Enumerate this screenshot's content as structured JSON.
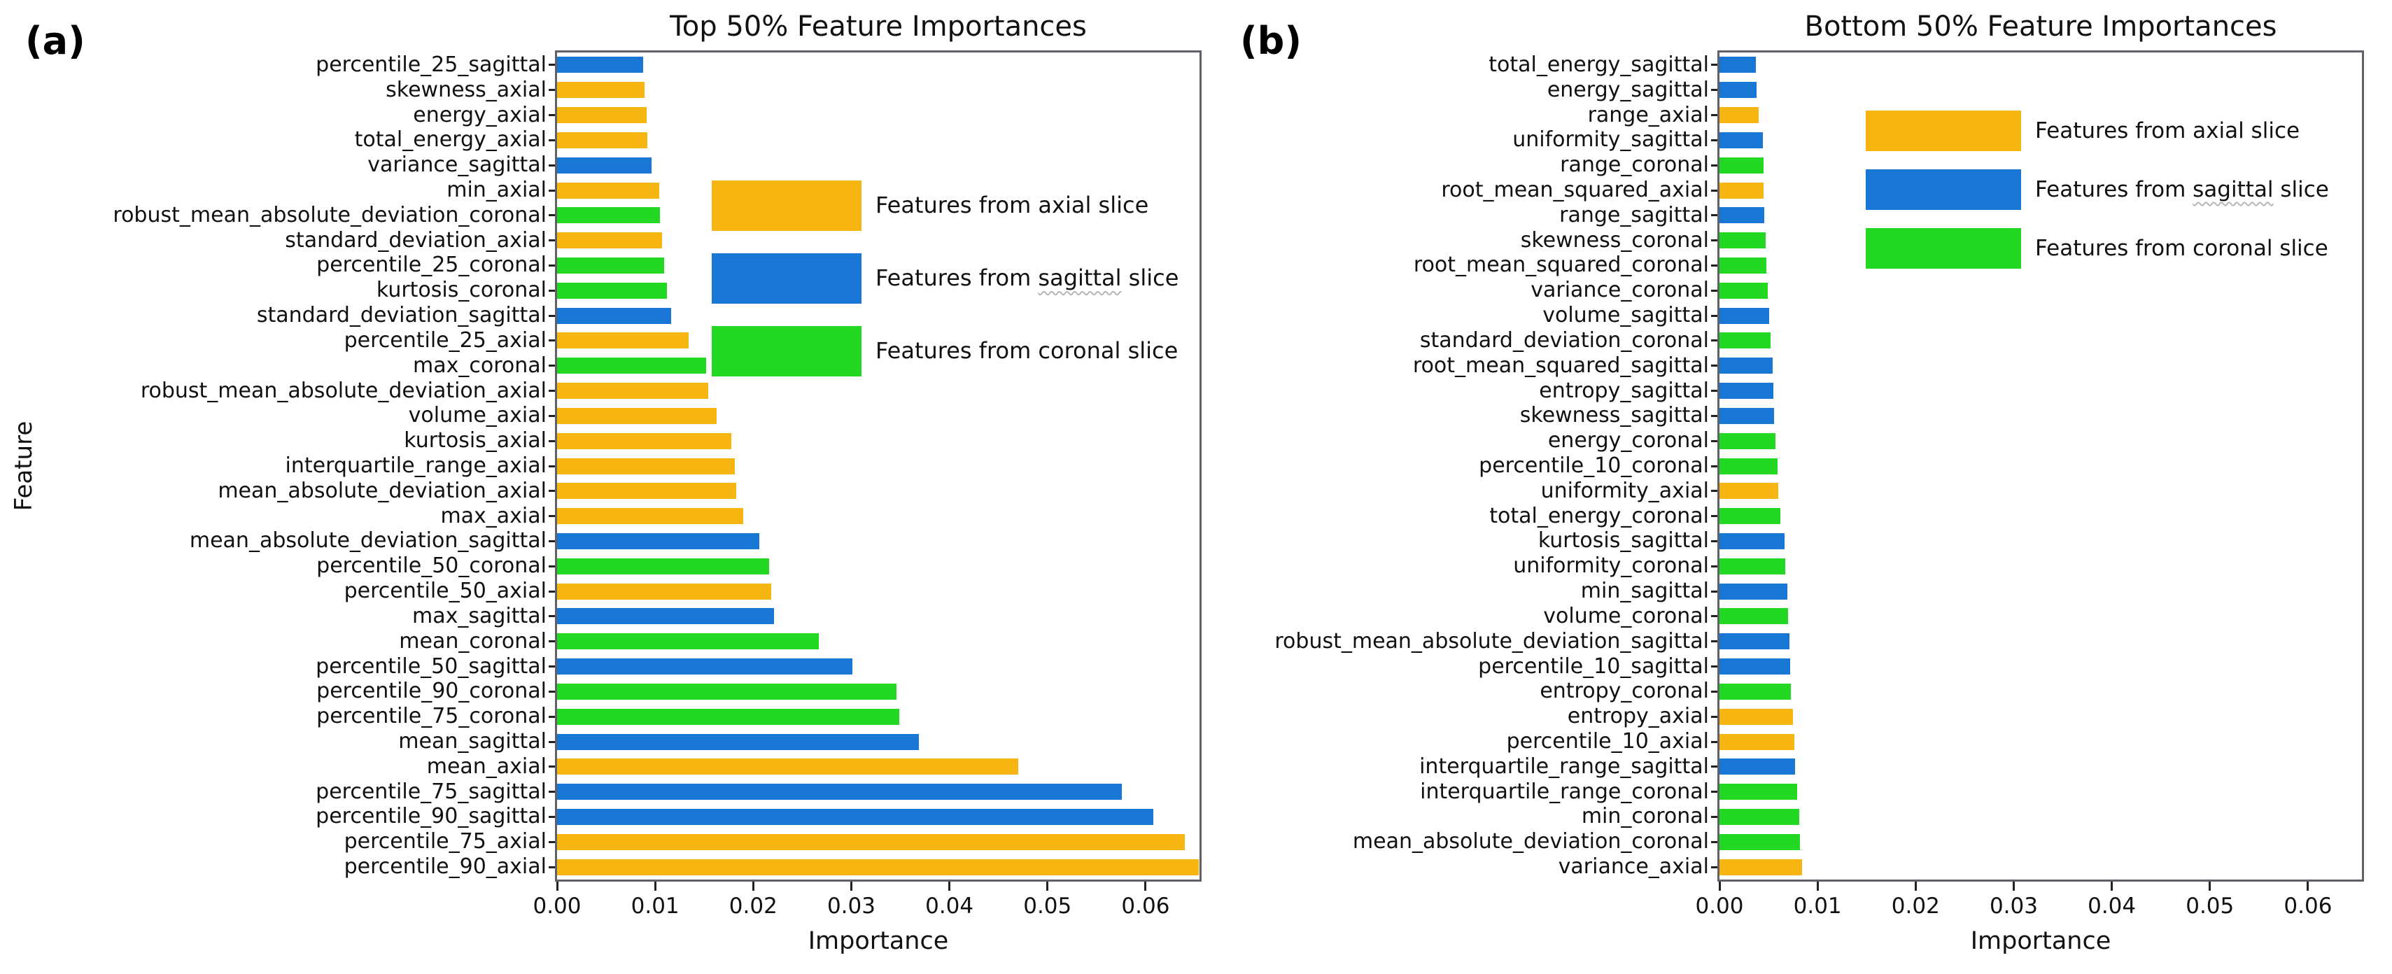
{
  "panels": [
    {
      "tag": "(a)"
    },
    {
      "tag": "(b)"
    }
  ],
  "colors": {
    "axial": "#F7B512",
    "sagittal": "#1877D4",
    "coronal": "#22D822",
    "frame": "#606068",
    "tick": "#222222",
    "text": "#111111"
  },
  "legend": {
    "items": [
      {
        "label": "Features from axial slice",
        "group": "axial",
        "wavy_word": ""
      },
      {
        "label": "Features from sagittal slice",
        "group": "sagittal",
        "wavy_word": "sagittal"
      },
      {
        "label": "Features from coronal slice",
        "group": "coronal",
        "wavy_word": ""
      }
    ]
  },
  "chart_data": [
    {
      "type": "bar",
      "orientation": "horizontal",
      "title": "Top 50% Feature Importances",
      "xlabel": "Importance",
      "ylabel": "Feature",
      "xlim": [
        0,
        0.0655
      ],
      "grid": false,
      "legend_position": "upper-center-left",
      "xticks": {
        "values": [
          0,
          0.01,
          0.02,
          0.03,
          0.04,
          0.05,
          0.06
        ],
        "labels": [
          "0.00",
          "0.01",
          "0.02",
          "0.03",
          "0.04",
          "0.05",
          "0.06"
        ]
      },
      "bars": [
        {
          "label": "percentile_25_sagittal",
          "value": 0.0088,
          "group": "sagittal"
        },
        {
          "label": "skewness_axial",
          "value": 0.0089,
          "group": "axial"
        },
        {
          "label": "energy_axial",
          "value": 0.0091,
          "group": "axial"
        },
        {
          "label": "total_energy_axial",
          "value": 0.0092,
          "group": "axial"
        },
        {
          "label": "variance_sagittal",
          "value": 0.0096,
          "group": "sagittal"
        },
        {
          "label": "min_axial",
          "value": 0.0104,
          "group": "axial"
        },
        {
          "label": "robust_mean_absolute_deviation_coronal",
          "value": 0.0105,
          "group": "coronal"
        },
        {
          "label": "standard_deviation_axial",
          "value": 0.0107,
          "group": "axial"
        },
        {
          "label": "percentile_25_coronal",
          "value": 0.0109,
          "group": "coronal"
        },
        {
          "label": "kurtosis_coronal",
          "value": 0.0112,
          "group": "coronal"
        },
        {
          "label": "standard_deviation_sagittal",
          "value": 0.0116,
          "group": "sagittal"
        },
        {
          "label": "percentile_25_axial",
          "value": 0.0134,
          "group": "axial"
        },
        {
          "label": "max_coronal",
          "value": 0.0152,
          "group": "coronal"
        },
        {
          "label": "robust_mean_absolute_deviation_axial",
          "value": 0.0154,
          "group": "axial"
        },
        {
          "label": "volume_axial",
          "value": 0.0163,
          "group": "axial"
        },
        {
          "label": "kurtosis_axial",
          "value": 0.0178,
          "group": "axial"
        },
        {
          "label": "interquartile_range_axial",
          "value": 0.0181,
          "group": "axial"
        },
        {
          "label": "mean_absolute_deviation_axial",
          "value": 0.0183,
          "group": "axial"
        },
        {
          "label": "max_axial",
          "value": 0.019,
          "group": "axial"
        },
        {
          "label": "mean_absolute_deviation_sagittal",
          "value": 0.0206,
          "group": "sagittal"
        },
        {
          "label": "percentile_50_coronal",
          "value": 0.0216,
          "group": "coronal"
        },
        {
          "label": "percentile_50_axial",
          "value": 0.0218,
          "group": "axial"
        },
        {
          "label": "max_sagittal",
          "value": 0.0221,
          "group": "sagittal"
        },
        {
          "label": "mean_coronal",
          "value": 0.0267,
          "group": "coronal"
        },
        {
          "label": "percentile_50_sagittal",
          "value": 0.0301,
          "group": "sagittal"
        },
        {
          "label": "percentile_90_coronal",
          "value": 0.0346,
          "group": "coronal"
        },
        {
          "label": "percentile_75_coronal",
          "value": 0.0349,
          "group": "coronal"
        },
        {
          "label": "mean_sagittal",
          "value": 0.0369,
          "group": "sagittal"
        },
        {
          "label": "mean_axial",
          "value": 0.047,
          "group": "axial"
        },
        {
          "label": "percentile_75_sagittal",
          "value": 0.0576,
          "group": "sagittal"
        },
        {
          "label": "percentile_90_sagittal",
          "value": 0.0608,
          "group": "sagittal"
        },
        {
          "label": "percentile_75_axial",
          "value": 0.064,
          "group": "axial"
        },
        {
          "label": "percentile_90_axial",
          "value": 0.0654,
          "group": "axial"
        }
      ]
    },
    {
      "type": "bar",
      "orientation": "horizontal",
      "title": "Bottom 50% Feature Importances",
      "xlabel": "Importance",
      "ylabel": "",
      "xlim": [
        0,
        0.0655
      ],
      "grid": false,
      "legend_position": "upper-center-left",
      "xticks": {
        "values": [
          0,
          0.01,
          0.02,
          0.03,
          0.04,
          0.05,
          0.06
        ],
        "labels": [
          "0.00",
          "0.01",
          "0.02",
          "0.03",
          "0.04",
          "0.05",
          "0.06"
        ]
      },
      "bars": [
        {
          "label": "total_energy_sagittal",
          "value": 0.0037,
          "group": "sagittal"
        },
        {
          "label": "energy_sagittal",
          "value": 0.0038,
          "group": "sagittal"
        },
        {
          "label": "range_axial",
          "value": 0.004,
          "group": "axial"
        },
        {
          "label": "uniformity_sagittal",
          "value": 0.0044,
          "group": "sagittal"
        },
        {
          "label": "range_coronal",
          "value": 0.0045,
          "group": "coronal"
        },
        {
          "label": "root_mean_squared_axial",
          "value": 0.0045,
          "group": "axial"
        },
        {
          "label": "range_sagittal",
          "value": 0.0046,
          "group": "sagittal"
        },
        {
          "label": "skewness_coronal",
          "value": 0.0047,
          "group": "coronal"
        },
        {
          "label": "root_mean_squared_coronal",
          "value": 0.0048,
          "group": "coronal"
        },
        {
          "label": "variance_coronal",
          "value": 0.0049,
          "group": "coronal"
        },
        {
          "label": "volume_sagittal",
          "value": 0.0051,
          "group": "sagittal"
        },
        {
          "label": "standard_deviation_coronal",
          "value": 0.0052,
          "group": "coronal"
        },
        {
          "label": "root_mean_squared_sagittal",
          "value": 0.0054,
          "group": "sagittal"
        },
        {
          "label": "entropy_sagittal",
          "value": 0.0055,
          "group": "sagittal"
        },
        {
          "label": "skewness_sagittal",
          "value": 0.0056,
          "group": "sagittal"
        },
        {
          "label": "energy_coronal",
          "value": 0.0057,
          "group": "coronal"
        },
        {
          "label": "percentile_10_coronal",
          "value": 0.0059,
          "group": "coronal"
        },
        {
          "label": "uniformity_axial",
          "value": 0.006,
          "group": "axial"
        },
        {
          "label": "total_energy_coronal",
          "value": 0.0062,
          "group": "coronal"
        },
        {
          "label": "kurtosis_sagittal",
          "value": 0.0066,
          "group": "sagittal"
        },
        {
          "label": "uniformity_coronal",
          "value": 0.0067,
          "group": "coronal"
        },
        {
          "label": "min_sagittal",
          "value": 0.0069,
          "group": "sagittal"
        },
        {
          "label": "volume_coronal",
          "value": 0.007,
          "group": "coronal"
        },
        {
          "label": "robust_mean_absolute_deviation_sagittal",
          "value": 0.0071,
          "group": "sagittal"
        },
        {
          "label": "percentile_10_sagittal",
          "value": 0.0072,
          "group": "sagittal"
        },
        {
          "label": "entropy_coronal",
          "value": 0.0073,
          "group": "coronal"
        },
        {
          "label": "entropy_axial",
          "value": 0.0075,
          "group": "axial"
        },
        {
          "label": "percentile_10_axial",
          "value": 0.0076,
          "group": "axial"
        },
        {
          "label": "interquartile_range_sagittal",
          "value": 0.0077,
          "group": "sagittal"
        },
        {
          "label": "interquartile_range_coronal",
          "value": 0.0079,
          "group": "coronal"
        },
        {
          "label": "min_coronal",
          "value": 0.0081,
          "group": "coronal"
        },
        {
          "label": "mean_absolute_deviation_coronal",
          "value": 0.0082,
          "group": "coronal"
        },
        {
          "label": "variance_axial",
          "value": 0.0084,
          "group": "axial"
        }
      ]
    }
  ]
}
